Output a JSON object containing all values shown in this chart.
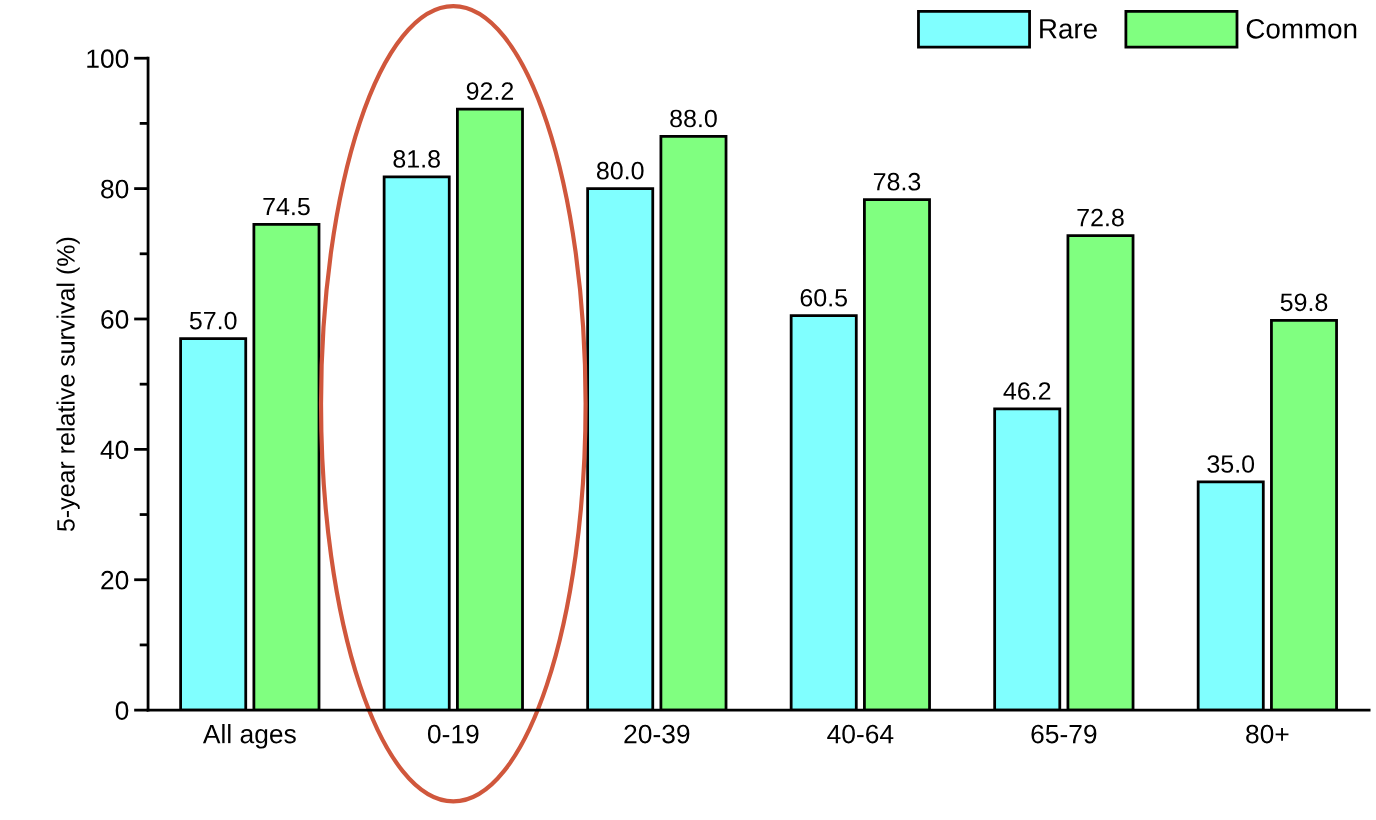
{
  "chart_data": {
    "type": "bar",
    "ylabel": "5-year relative survival (%)",
    "categories": [
      "All ages",
      "0-19",
      "20-39",
      "40-64",
      "65-79",
      "80+"
    ],
    "series": [
      {
        "name": "Rare",
        "color": "#80ffff",
        "values": [
          57.0,
          81.8,
          80.0,
          60.5,
          46.2,
          35.0
        ],
        "value_labels": [
          "57.0",
          "81.8",
          "80.0",
          "60.5",
          "46.2",
          "35.0"
        ]
      },
      {
        "name": "Common",
        "color": "#80ff80",
        "values": [
          74.5,
          92.2,
          88.0,
          78.3,
          72.8,
          59.8
        ],
        "value_labels": [
          "74.5",
          "92.2",
          "88.0",
          "78.3",
          "72.8",
          "59.8"
        ]
      }
    ],
    "ylim": [
      0,
      100
    ],
    "yticks": [
      0,
      20,
      40,
      60,
      80,
      100
    ],
    "grid": false,
    "legend": "top right"
  }
}
